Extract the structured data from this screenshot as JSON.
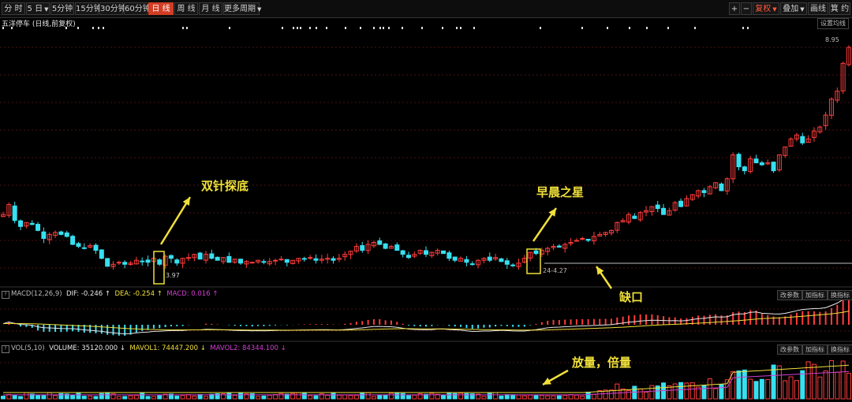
{
  "toolbar": {
    "periods": [
      {
        "label": "分 时",
        "active": false
      },
      {
        "label": "5 日",
        "active": false,
        "dropdown": true
      },
      {
        "label": "5分钟",
        "active": false
      },
      {
        "label": "15分钟",
        "active": false
      },
      {
        "label": "30分钟",
        "active": false
      },
      {
        "label": "60分钟",
        "active": false
      },
      {
        "label": "日 线",
        "active": true
      },
      {
        "label": "周 线",
        "active": false
      },
      {
        "label": "月 线",
        "active": false
      },
      {
        "label": "更多周期",
        "active": false,
        "dropdown": true
      }
    ],
    "zoom_in": "+",
    "zoom_out": "−",
    "adjust": "复权",
    "overlay": "叠加",
    "draw": "画线",
    "tools": "箕 约"
  },
  "stock_title": "五洋停车 (日线,前复权)",
  "settings_label": "设置均线",
  "price_labels": {
    "low_point": "3.97",
    "gap_date": "24-4.27",
    "high_point": "8.95"
  },
  "macd": {
    "name": "MACD(12,26,9)",
    "dif": "DIF: -0.246 ↑",
    "dea": "DEA: -0.254 ↑",
    "macd": "MACD: 0.016 ↑"
  },
  "vol": {
    "name": "VOL(5,10)",
    "volume": "VOLUME: 35120.000 ↓",
    "mavol1": "MAVOL1: 74447.200 ↓",
    "mavol2": "MAVOL2: 84344.100 ↓"
  },
  "panel_buttons": {
    "params": "改参数",
    "add_indicator": "加指标",
    "switch_indicator": "换指标"
  },
  "annotations": {
    "double_needle": "双针探底",
    "morning_star": "早晨之星",
    "gap": "缺口",
    "volume_up": "放量，倍量"
  },
  "colors": {
    "up": "#ff3c3c",
    "down": "#36e0f0",
    "annotation": "#f0e03a",
    "dif": "#e8e8e8",
    "dea": "#f0e03a",
    "macd": "#d040d0"
  },
  "chart_data": {
    "type": "candlestick",
    "price_close": [
      3.7,
      3.95,
      3.55,
      3.4,
      3.5,
      3.45,
      3.3,
      3.1,
      3.2,
      3.25,
      3.2,
      3.15,
      2.95,
      2.9,
      2.85,
      2.92,
      2.8,
      2.6,
      2.4,
      2.45,
      2.5,
      2.45,
      2.48,
      2.55,
      2.52,
      2.5,
      2.6,
      2.45,
      2.65,
      2.6,
      2.48,
      2.6,
      2.62,
      2.7,
      2.58,
      2.7,
      2.6,
      2.55,
      2.62,
      2.5,
      2.58,
      2.48,
      2.52,
      2.5,
      2.55,
      2.5,
      2.52,
      2.55,
      2.58,
      2.5,
      2.55,
      2.6,
      2.58,
      2.62,
      2.55,
      2.58,
      2.6,
      2.55,
      2.6,
      2.7,
      2.78,
      2.9,
      2.8,
      2.95,
      3.0,
      2.95,
      2.85,
      2.9,
      2.8,
      2.7,
      2.62,
      2.7,
      2.8,
      2.7,
      2.75,
      2.8,
      2.72,
      2.6,
      2.55,
      2.6,
      2.5,
      2.45,
      2.55,
      2.6,
      2.55,
      2.62,
      2.52,
      2.45,
      2.42,
      2.48,
      2.6,
      2.75,
      2.72,
      2.8,
      2.85,
      2.9,
      2.88,
      2.95,
      3.0,
      3.05,
      3.1,
      3.05,
      3.15,
      3.2,
      3.25,
      3.3,
      3.5,
      3.55,
      3.7,
      3.6,
      3.75,
      3.8,
      3.9,
      3.85,
      3.7,
      3.8,
      4.0,
      3.9,
      4.1,
      4.2,
      4.3,
      4.25,
      4.4,
      4.5,
      4.3,
      4.6,
      5.2,
      4.9,
      4.8,
      5.1,
      5.0,
      4.95,
      5.0,
      4.8,
      5.2,
      5.4,
      5.6,
      5.7,
      5.5,
      5.6,
      5.8,
      5.9,
      6.2,
      6.6,
      6.8,
      7.5,
      7.9
    ]
  }
}
